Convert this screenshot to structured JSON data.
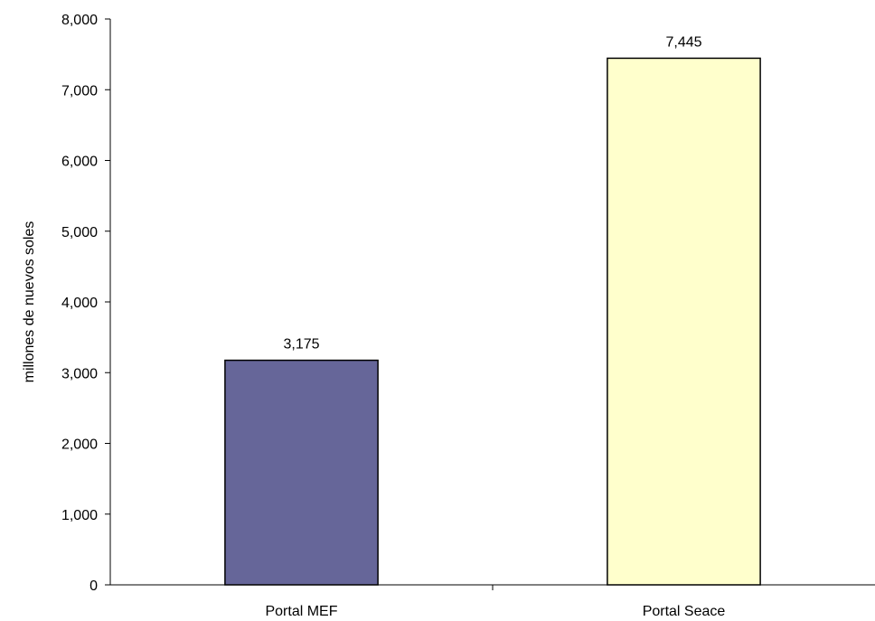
{
  "chart_data": {
    "type": "bar",
    "title": "",
    "xlabel": "",
    "ylabel": "millones de nuevos soles",
    "categories": [
      "Portal MEF",
      "Portal Seace"
    ],
    "values": [
      3175,
      7445
    ],
    "data_labels": [
      "3,175",
      "7,445"
    ],
    "bar_colors": [
      "#666699",
      "#FFFFCC"
    ],
    "ylim": [
      0,
      8000
    ],
    "yticks": [
      0,
      1000,
      2000,
      3000,
      4000,
      5000,
      6000,
      7000,
      8000
    ],
    "ytick_labels": [
      "0",
      "1,000",
      "2,000",
      "3,000",
      "4,000",
      "5,000",
      "6,000",
      "7,000",
      "8,000"
    ],
    "grid": false,
    "legend": "none"
  }
}
